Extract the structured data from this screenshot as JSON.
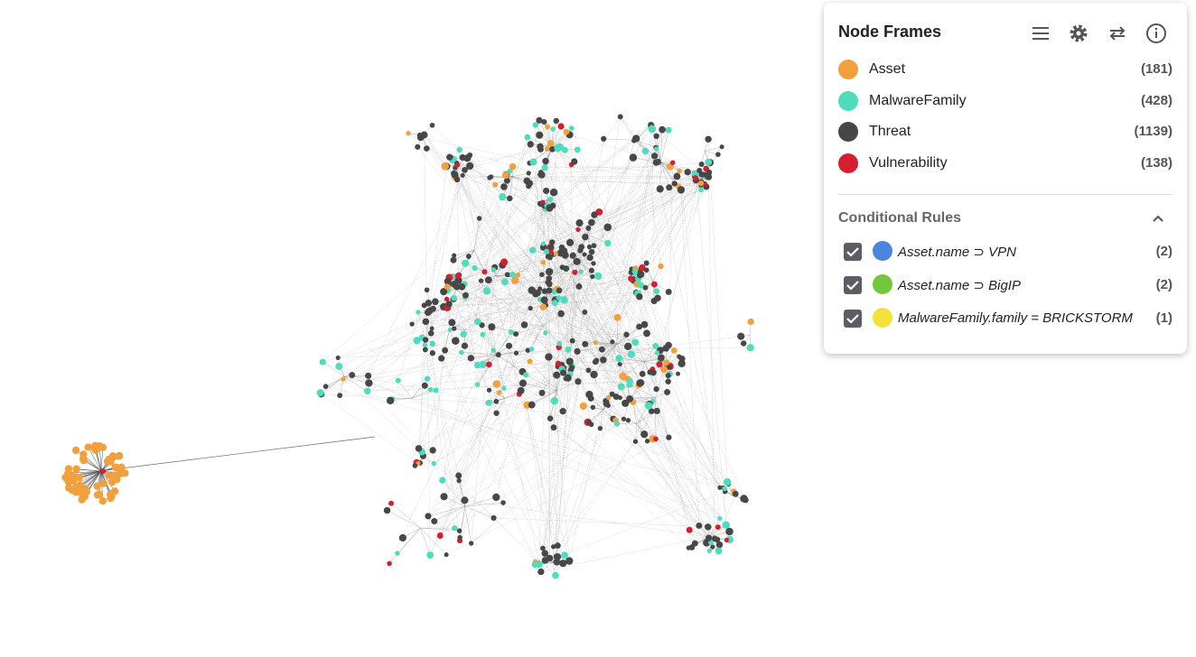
{
  "panel": {
    "title": "Node Frames",
    "node_types": [
      {
        "label": "Asset",
        "count": "(181)",
        "color": "#f2a03d"
      },
      {
        "label": "MalwareFamily",
        "count": "(428)",
        "color": "#4fdcbc"
      },
      {
        "label": "Threat",
        "count": "(1139)",
        "color": "#474747"
      },
      {
        "label": "Vulnerability",
        "count": "(138)",
        "color": "#d41f2e"
      }
    ],
    "conditional_rules": {
      "title": "Conditional Rules",
      "rules": [
        {
          "label": "Asset.name ⊃ VPN",
          "count": "(2)",
          "color": "#4a86e0",
          "checked": true
        },
        {
          "label": "Asset.name ⊃ BigIP",
          "count": "(2)",
          "color": "#72c83a",
          "checked": true
        },
        {
          "label": "MalwareFamily.family = BRICKSTORM",
          "count": "(1)",
          "color": "#f3e13c",
          "checked": true
        }
      ]
    }
  }
}
